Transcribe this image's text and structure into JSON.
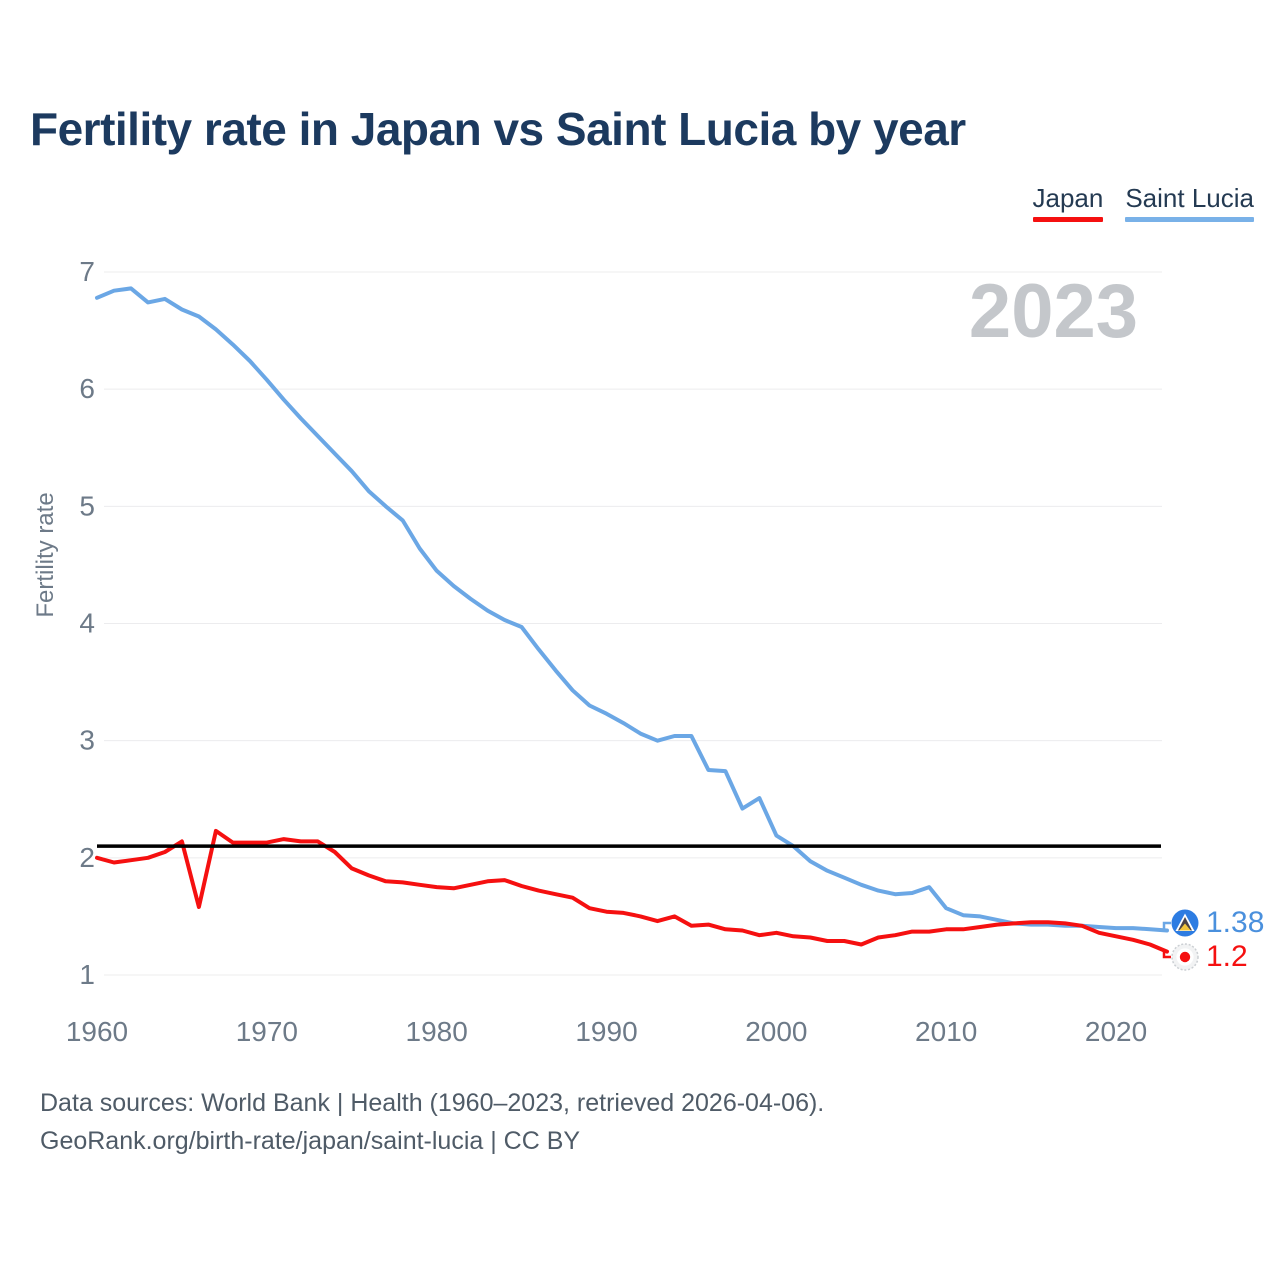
{
  "header": {
    "title": "Fertility rate in Japan vs Saint Lucia by year"
  },
  "legend": {
    "items": [
      {
        "label": "Japan",
        "color": "#f51010"
      },
      {
        "label": "Saint Lucia",
        "color": "#79b1e8"
      }
    ]
  },
  "watermark": "2023",
  "axes": {
    "y_label": "Fertility rate",
    "y_ticks": [
      1,
      2,
      3,
      4,
      5,
      6,
      7
    ],
    "x_ticks": [
      1960,
      1970,
      1980,
      1990,
      2000,
      2010,
      2020
    ]
  },
  "reference_line": {
    "value": 2.1,
    "color": "#000000"
  },
  "end_labels": [
    {
      "series": "Saint Lucia",
      "value": "1.38",
      "color": "#4a90dd"
    },
    {
      "series": "Japan",
      "value": "1.2",
      "color": "#f51010"
    }
  ],
  "footer": {
    "line1": "Data sources: World Bank | Health (1960–2023, retrieved 2026-04-06).",
    "line2": "GeoRank.org/birth-rate/japan/saint-lucia | CC BY"
  },
  "chart_data": {
    "type": "line",
    "title": "Fertility rate in Japan vs Saint Lucia by year",
    "xlabel": "",
    "ylabel": "Fertility rate",
    "xlim": [
      1960,
      2023
    ],
    "ylim": [
      1,
      7
    ],
    "grid": "horizontal-only",
    "legend_position": "top-right",
    "reference_line": 2.1,
    "x": [
      1960,
      1961,
      1962,
      1963,
      1964,
      1965,
      1966,
      1967,
      1968,
      1969,
      1970,
      1971,
      1972,
      1973,
      1974,
      1975,
      1976,
      1977,
      1978,
      1979,
      1980,
      1981,
      1982,
      1983,
      1984,
      1985,
      1986,
      1987,
      1988,
      1989,
      1990,
      1991,
      1992,
      1993,
      1994,
      1995,
      1996,
      1997,
      1998,
      1999,
      2000,
      2001,
      2002,
      2003,
      2004,
      2005,
      2006,
      2007,
      2008,
      2009,
      2010,
      2011,
      2012,
      2013,
      2014,
      2015,
      2016,
      2017,
      2018,
      2019,
      2020,
      2021,
      2022,
      2023
    ],
    "series": [
      {
        "name": "Japan",
        "color": "#f51010",
        "values": [
          2.0,
          1.96,
          1.98,
          2.0,
          2.05,
          2.14,
          1.58,
          2.23,
          2.13,
          2.13,
          2.13,
          2.16,
          2.14,
          2.14,
          2.05,
          1.91,
          1.85,
          1.8,
          1.79,
          1.77,
          1.75,
          1.74,
          1.77,
          1.8,
          1.81,
          1.76,
          1.72,
          1.69,
          1.66,
          1.57,
          1.54,
          1.53,
          1.5,
          1.46,
          1.5,
          1.42,
          1.43,
          1.39,
          1.38,
          1.34,
          1.36,
          1.33,
          1.32,
          1.29,
          1.29,
          1.26,
          1.32,
          1.34,
          1.37,
          1.37,
          1.39,
          1.39,
          1.41,
          1.43,
          1.44,
          1.45,
          1.45,
          1.44,
          1.42,
          1.36,
          1.33,
          1.3,
          1.26,
          1.2
        ]
      },
      {
        "name": "Saint Lucia",
        "color": "#6ba7e5",
        "values": [
          6.78,
          6.84,
          6.86,
          6.74,
          6.77,
          6.68,
          6.62,
          6.51,
          6.38,
          6.24,
          6.08,
          5.91,
          5.75,
          5.6,
          5.45,
          5.3,
          5.13,
          5.0,
          4.88,
          4.64,
          4.45,
          4.32,
          4.21,
          4.11,
          4.03,
          3.97,
          3.78,
          3.6,
          3.43,
          3.3,
          3.23,
          3.15,
          3.06,
          3.0,
          3.04,
          3.04,
          2.75,
          2.74,
          2.42,
          2.51,
          2.19,
          2.1,
          1.97,
          1.89,
          1.83,
          1.77,
          1.72,
          1.69,
          1.7,
          1.75,
          1.57,
          1.51,
          1.5,
          1.47,
          1.44,
          1.43,
          1.43,
          1.42,
          1.42,
          1.41,
          1.4,
          1.4,
          1.39,
          1.38
        ]
      }
    ],
    "annotations": {
      "watermark_year": "2023",
      "japan_last_value": 1.2,
      "saint_lucia_last_value": 1.38
    }
  }
}
